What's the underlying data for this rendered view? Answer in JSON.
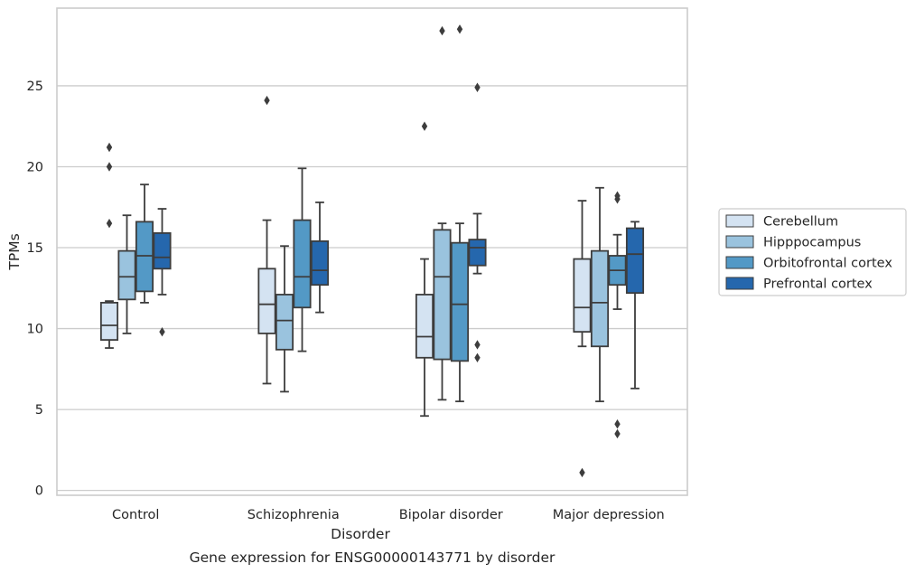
{
  "chart_data": {
    "type": "box",
    "caption": "Gene expression for ENSG00000143771 by disorder",
    "xlabel": "Disorder",
    "ylabel": "TPMs",
    "ylim": [
      -0.3,
      29.8
    ],
    "yticks": [
      0,
      5,
      10,
      15,
      20,
      25
    ],
    "grid": "horizontal",
    "legend_position": "right",
    "categories": [
      "Control",
      "Schizophrenia",
      "Bipolar disorder",
      "Major depression"
    ],
    "series": [
      {
        "name": "Cerebellum",
        "color": "#d4e3f2",
        "boxes": [
          {
            "whislo": 8.8,
            "q1": 9.3,
            "med": 10.2,
            "q3": 11.6,
            "whishi": 11.7,
            "fliers": [
              16.5,
              20.0,
              21.2
            ]
          },
          {
            "whislo": 6.6,
            "q1": 9.7,
            "med": 11.5,
            "q3": 13.7,
            "whishi": 16.7,
            "fliers": [
              24.1
            ]
          },
          {
            "whislo": 4.6,
            "q1": 8.2,
            "med": 9.5,
            "q3": 12.1,
            "whishi": 14.3,
            "fliers": [
              22.5
            ]
          },
          {
            "whislo": 8.9,
            "q1": 9.8,
            "med": 11.3,
            "q3": 14.3,
            "whishi": 17.9,
            "fliers": [
              1.1
            ]
          }
        ]
      },
      {
        "name": "Hipppocampus",
        "color": "#9ac3de",
        "boxes": [
          {
            "whislo": 9.7,
            "q1": 11.8,
            "med": 13.2,
            "q3": 14.8,
            "whishi": 17.0,
            "fliers": []
          },
          {
            "whislo": 6.1,
            "q1": 8.7,
            "med": 10.5,
            "q3": 12.1,
            "whishi": 15.1,
            "fliers": []
          },
          {
            "whislo": 5.6,
            "q1": 8.1,
            "med": 13.2,
            "q3": 16.1,
            "whishi": 16.5,
            "fliers": [
              28.4
            ]
          },
          {
            "whislo": 5.5,
            "q1": 8.9,
            "med": 11.6,
            "q3": 14.8,
            "whishi": 18.7,
            "fliers": []
          }
        ]
      },
      {
        "name": "Orbitofrontal cortex",
        "color": "#5399c6",
        "boxes": [
          {
            "whislo": 11.6,
            "q1": 12.3,
            "med": 14.5,
            "q3": 16.6,
            "whishi": 18.9,
            "fliers": []
          },
          {
            "whislo": 8.6,
            "q1": 11.3,
            "med": 13.2,
            "q3": 16.7,
            "whishi": 19.9,
            "fliers": []
          },
          {
            "whislo": 5.5,
            "q1": 8.0,
            "med": 11.5,
            "q3": 15.3,
            "whishi": 16.5,
            "fliers": [
              28.5
            ]
          },
          {
            "whislo": 11.2,
            "q1": 12.7,
            "med": 13.6,
            "q3": 14.5,
            "whishi": 15.8,
            "fliers": [
              3.5,
              4.1,
              18.0,
              18.2
            ]
          }
        ]
      },
      {
        "name": "Prefrontal cortex",
        "color": "#2567ad",
        "boxes": [
          {
            "whislo": 12.1,
            "q1": 13.7,
            "med": 14.4,
            "q3": 15.9,
            "whishi": 17.4,
            "fliers": [
              9.8
            ]
          },
          {
            "whislo": 11.0,
            "q1": 12.7,
            "med": 13.6,
            "q3": 15.4,
            "whishi": 17.8,
            "fliers": []
          },
          {
            "whislo": 13.4,
            "q1": 13.9,
            "med": 15.0,
            "q3": 15.5,
            "whishi": 17.1,
            "fliers": [
              8.2,
              9.0,
              24.9
            ]
          },
          {
            "whislo": 6.3,
            "q1": 12.2,
            "med": 14.6,
            "q3": 16.2,
            "whishi": 16.6,
            "fliers": []
          }
        ]
      }
    ]
  }
}
